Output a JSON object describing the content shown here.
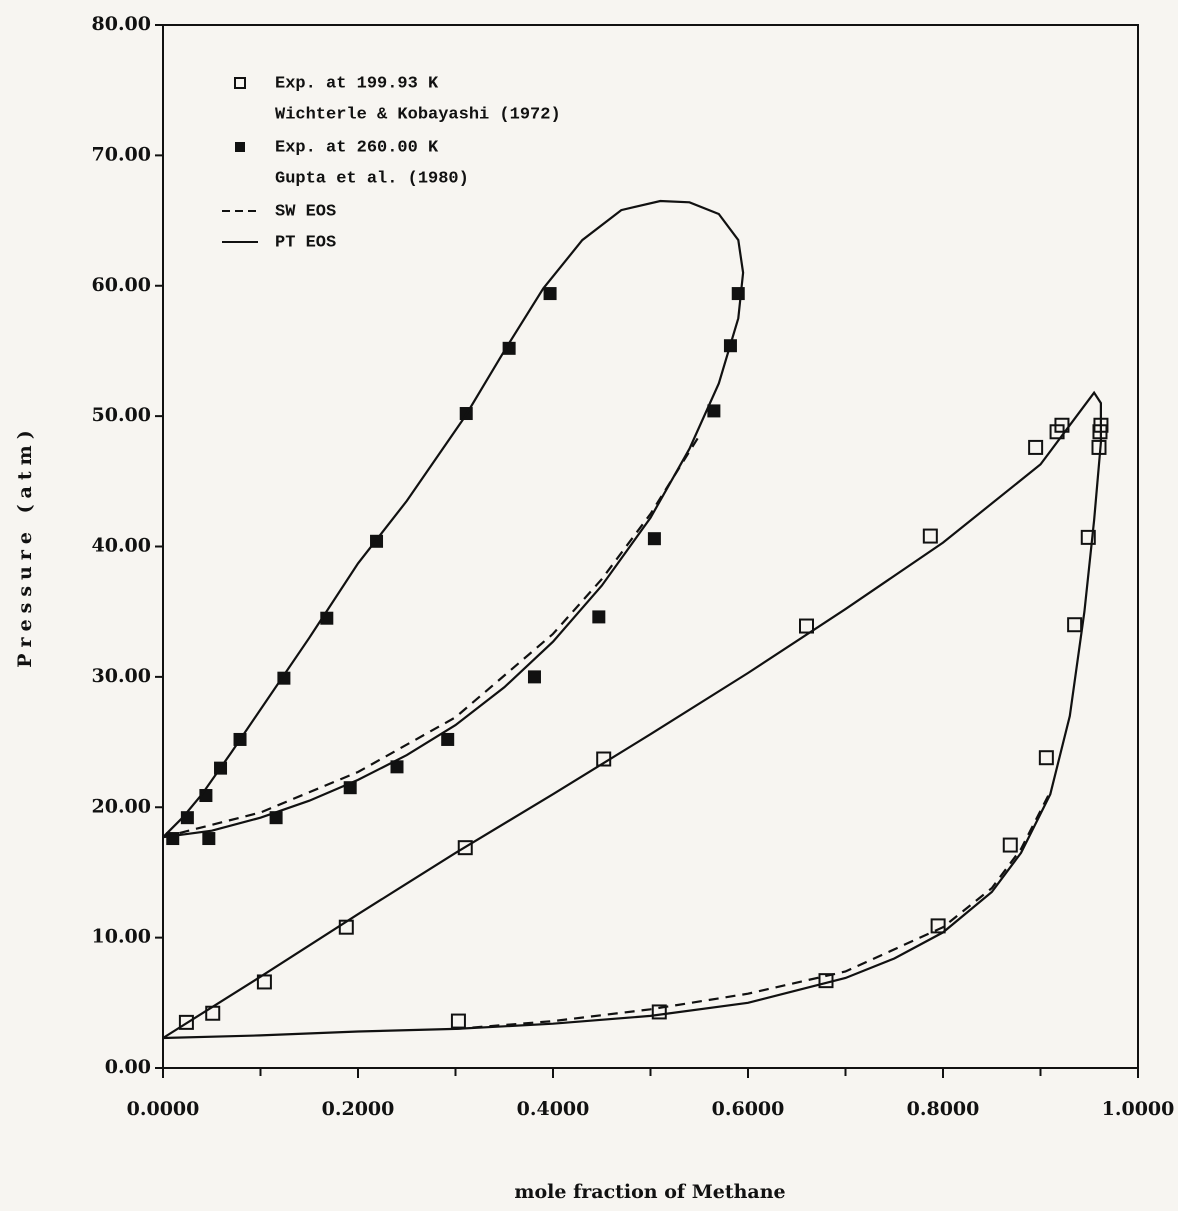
{
  "chart_data": {
    "type": "scatter",
    "xlabel": "mole fraction of Methane",
    "ylabel": "Pressure (atm)",
    "xlim": [
      0,
      1
    ],
    "ylim": [
      0,
      80
    ],
    "xticks": [
      {
        "value": 0,
        "label": "0.0000"
      },
      {
        "value": 0.2,
        "label": "0.2000"
      },
      {
        "value": 0.4,
        "label": "0.4000"
      },
      {
        "value": 0.6,
        "label": "0.6000"
      },
      {
        "value": 0.8,
        "label": "0.8000"
      },
      {
        "value": 1,
        "label": "1.0000"
      }
    ],
    "xminorticks": [
      0.1,
      0.3,
      0.5,
      0.7,
      0.9
    ],
    "yticks": [
      {
        "value": 0,
        "label": "0.00"
      },
      {
        "value": 10,
        "label": "10.00"
      },
      {
        "value": 20,
        "label": "20.00"
      },
      {
        "value": 30,
        "label": "30.00"
      },
      {
        "value": 40,
        "label": "40.00"
      },
      {
        "value": 50,
        "label": "50.00"
      },
      {
        "value": 60,
        "label": "60.00"
      },
      {
        "value": 70,
        "label": "70.00"
      },
      {
        "value": 80,
        "label": "80.00"
      }
    ],
    "legend": "upper left",
    "series": [
      {
        "name": "Exp. at 199.93 K",
        "source": "Wichterle & Kobayashi (1972)",
        "kind": "open-square",
        "color": "#111111",
        "x": [
          0.024,
          0.051,
          0.104,
          0.188,
          0.31,
          0.452,
          0.66,
          0.787,
          0.895,
          0.917,
          0.922,
          0.962,
          0.961,
          0.96,
          0.949,
          0.935,
          0.906,
          0.869,
          0.795,
          0.68,
          0.509,
          0.303
        ],
        "y": [
          3.5,
          4.2,
          6.6,
          10.8,
          16.9,
          23.7,
          33.9,
          40.8,
          47.6,
          48.8,
          49.3,
          49.3,
          48.8,
          47.6,
          40.7,
          34.0,
          23.8,
          17.1,
          10.9,
          6.7,
          4.3,
          3.6
        ]
      },
      {
        "name": "Exp. at 260.00 K",
        "source": "Gupta et al. (1980)",
        "kind": "filled-square",
        "color": "#111111",
        "x": [
          0.01,
          0.025,
          0.044,
          0.059,
          0.079,
          0.124,
          0.168,
          0.219,
          0.311,
          0.355,
          0.397,
          0.59,
          0.582,
          0.565,
          0.504,
          0.447,
          0.381,
          0.292,
          0.24,
          0.192,
          0.116,
          0.047
        ],
        "y": [
          17.6,
          19.2,
          20.9,
          23.0,
          25.2,
          29.9,
          34.5,
          40.4,
          50.2,
          55.2,
          59.4,
          59.4,
          55.4,
          50.4,
          40.6,
          34.6,
          30.0,
          25.2,
          23.1,
          21.5,
          19.2,
          17.6
        ]
      },
      {
        "name": "SW EOS",
        "kind": "dashed-line",
        "color": "#111111",
        "segments": [
          {
            "x": [
              0,
              0.1,
              0.2,
              0.3,
              0.4,
              0.45,
              0.5,
              0.55
            ],
            "y": [
              17.7,
              19.6,
              22.7,
              26.9,
              33.3,
              37.5,
              42.5,
              48.5
            ]
          },
          {
            "x": [
              0.3,
              0.4,
              0.5,
              0.6,
              0.7,
              0.8,
              0.85,
              0.88,
              0.91
            ],
            "y": [
              3.0,
              3.6,
              4.5,
              5.7,
              7.4,
              10.8,
              13.8,
              16.8,
              21.2
            ]
          }
        ]
      },
      {
        "name": "PT EOS",
        "kind": "solid-line",
        "color": "#111111",
        "segments": [
          {
            "x": [
              0,
              0.05,
              0.1,
              0.15,
              0.2,
              0.25,
              0.3,
              0.35,
              0.4,
              0.45,
              0.5,
              0.54,
              0.57,
              0.59,
              0.595,
              0.59,
              0.57,
              0.54,
              0.51,
              0.47,
              0.43,
              0.39,
              0.35,
              0.31,
              0.25,
              0.2,
              0.15,
              0.1,
              0.07,
              0.04,
              0.02,
              0
            ],
            "y": [
              17.7,
              18.2,
              19.2,
              20.5,
              22.1,
              24.0,
              26.3,
              29.2,
              32.7,
              37.0,
              42.2,
              47.5,
              52.5,
              57.5,
              61.0,
              63.5,
              65.5,
              66.4,
              66.5,
              65.8,
              63.5,
              59.8,
              55.0,
              50.0,
              43.5,
              38.7,
              33.0,
              27.5,
              24.2,
              21.0,
              19.2,
              17.7
            ]
          },
          {
            "x": [
              0,
              0.1,
              0.2,
              0.3,
              0.4,
              0.5,
              0.6,
              0.7,
              0.8,
              0.9,
              0.94,
              0.955,
              0.962,
              0.962,
              0.955,
              0.945,
              0.93,
              0.91,
              0.88,
              0.85,
              0.8,
              0.75,
              0.7,
              0.6,
              0.5,
              0.4,
              0.3,
              0.2,
              0.1,
              0
            ],
            "y": [
              2.3,
              7.0,
              11.8,
              16.5,
              21.0,
              25.6,
              30.3,
              35.2,
              40.3,
              46.3,
              50.3,
              51.8,
              51.0,
              48.0,
              42.0,
              35.0,
              27.0,
              21.0,
              16.5,
              13.5,
              10.4,
              8.4,
              6.9,
              5.0,
              4.0,
              3.4,
              3.0,
              2.8,
              2.5,
              2.3
            ]
          }
        ]
      }
    ]
  }
}
